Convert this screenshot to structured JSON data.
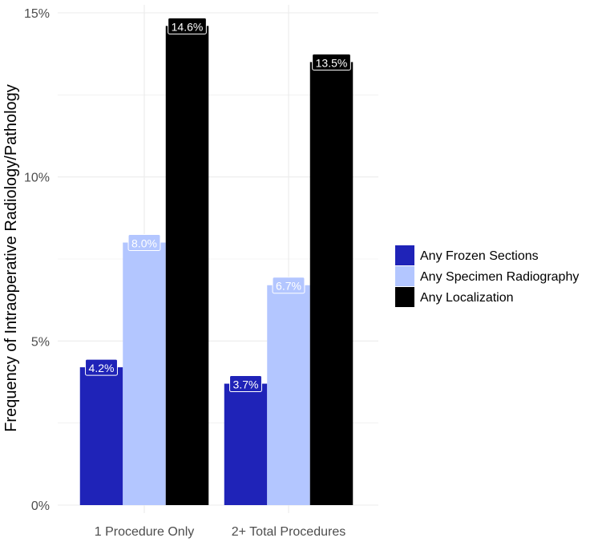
{
  "chart_data": {
    "type": "bar",
    "categories": [
      "1 Procedure Only",
      "2+ Total Procedures"
    ],
    "series": [
      {
        "name": "Any Frozen Sections",
        "values": [
          4.2,
          3.7
        ],
        "color": "#1f23b8",
        "label_fill": "#1f23b8"
      },
      {
        "name": "Any Specimen Radiography",
        "values": [
          8.0,
          6.7
        ],
        "color": "#b3c6ff",
        "label_fill": "#b3c6ff"
      },
      {
        "name": "Any Localization",
        "values": [
          14.6,
          13.5
        ],
        "color": "#000000",
        "label_fill": "#000000"
      }
    ],
    "data_labels": [
      [
        "4.2%",
        "3.7%"
      ],
      [
        "8.0%",
        "6.7%"
      ],
      [
        "14.6%",
        "13.5%"
      ]
    ],
    "xlabel": "",
    "ylabel": "Frequency of Intraoperative Radiology/Pathology",
    "ylim": [
      0,
      15
    ],
    "yticks": [
      0,
      5,
      10,
      15
    ],
    "ytick_labels": [
      "0%",
      "5%",
      "10%",
      "15%"
    ],
    "grid": true,
    "grid_color": "#ebebeb",
    "legend_position": "right"
  }
}
